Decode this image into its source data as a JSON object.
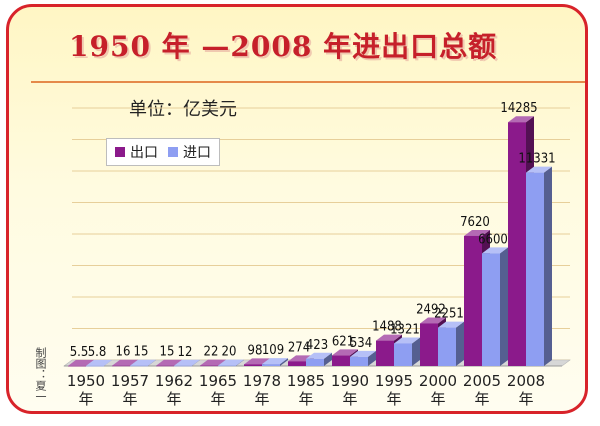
{
  "title": "1950 年 —2008 年进出口总额",
  "unit_label": "单位：亿美元",
  "credit": "制图：夏一",
  "colors": {
    "border": "#d8232a",
    "title": "#c6202a",
    "export": "#8b1a8b",
    "import": "#8e9ef2"
  },
  "chart_data": {
    "type": "bar",
    "title": "1950 年 —2008 年进出口总额",
    "categories": [
      "1950\n年",
      "1957\n年",
      "1962\n年",
      "1965\n年",
      "1978\n年",
      "1985\n年",
      "1990\n年",
      "1995\n年",
      "2000\n年",
      "2005\n年",
      "2008\n年"
    ],
    "series": [
      {
        "name": "出口",
        "values": [
          5.5,
          16,
          15,
          22,
          98,
          274,
          621,
          1488,
          2492,
          7620,
          14285
        ],
        "labels": [
          "5.5",
          "16",
          "15",
          "22",
          "98",
          "274",
          "621",
          "1488",
          "2492",
          "7620",
          "14285"
        ]
      },
      {
        "name": "进口",
        "values": [
          5.8,
          15,
          12,
          20,
          109,
          423,
          534,
          1321,
          2251,
          6600,
          11331
        ],
        "labels": [
          "5.8",
          "15",
          "12",
          "20",
          "109",
          "423",
          "534",
          "1321",
          "2251",
          "6600",
          "11331"
        ]
      }
    ],
    "xlabel": "",
    "ylabel": "",
    "ylim": [
      0,
      15000
    ],
    "grid": true,
    "legend": "top-left"
  }
}
